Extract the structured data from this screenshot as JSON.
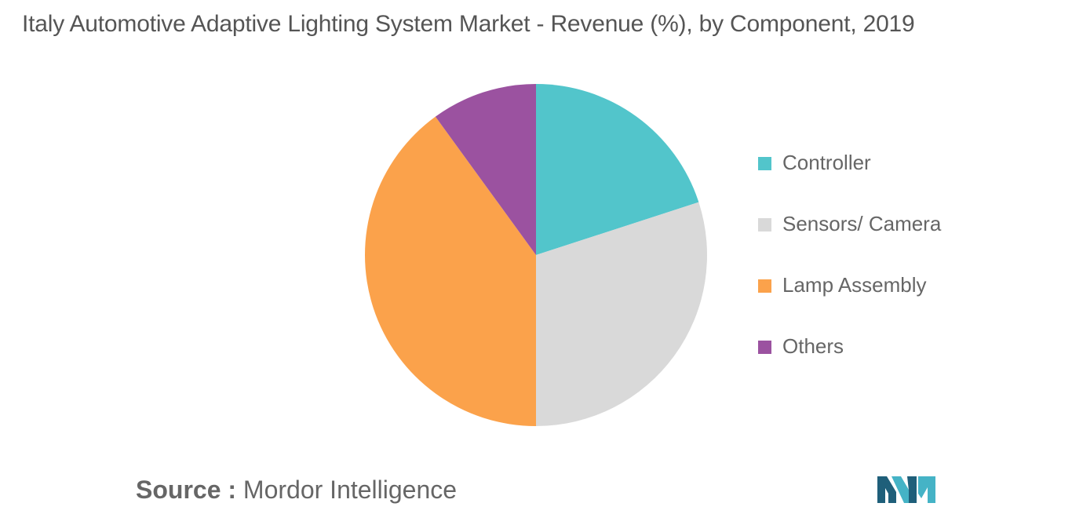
{
  "chart_data": {
    "type": "pie",
    "title": "Italy Automotive Adaptive Lighting System Market - Revenue (%), by Component, 2019",
    "categories": [
      "Controller",
      "Sensors/ Camera",
      "Lamp Assembly",
      "Others"
    ],
    "values": [
      20,
      30,
      40,
      10
    ],
    "colors": [
      "#52c5cb",
      "#d9d9d9",
      "#fba24b",
      "#9b52a0"
    ],
    "legend": "right"
  },
  "source": {
    "label": "Source :",
    "text": "Mordor Intelligence"
  },
  "logo": {
    "icon": "mordor-intelligence-logo",
    "colors": [
      "#1f5f7a",
      "#45b3c6"
    ]
  }
}
